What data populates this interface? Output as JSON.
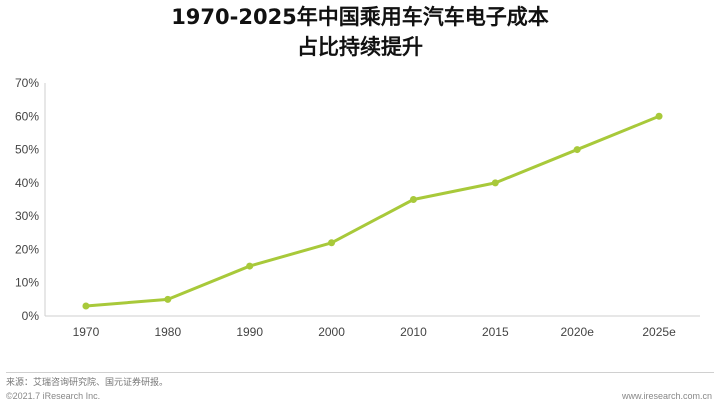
{
  "chart_data": {
    "type": "line",
    "title_lines": [
      "1970-2025年中国乘用车汽车电子成本",
      "占比持续提升"
    ],
    "categories": [
      "1970",
      "1980",
      "1990",
      "2000",
      "2010",
      "2015",
      "2020e",
      "2025e"
    ],
    "series": [
      {
        "values": [
          3,
          5,
          15,
          22,
          35,
          40,
          50,
          60
        ]
      }
    ],
    "ylim": [
      0,
      70
    ],
    "yticks": [
      "0%",
      "10%",
      "20%",
      "30%",
      "40%",
      "50%",
      "60%",
      "70%"
    ],
    "grid": false,
    "line_color": "#a8c93a"
  },
  "footer": {
    "source": "来源：艾瑞咨询研究院、国元证券研报。",
    "copyright": "©2021.7 iResearch Inc.",
    "website": "www.iresearch.com.cn"
  }
}
